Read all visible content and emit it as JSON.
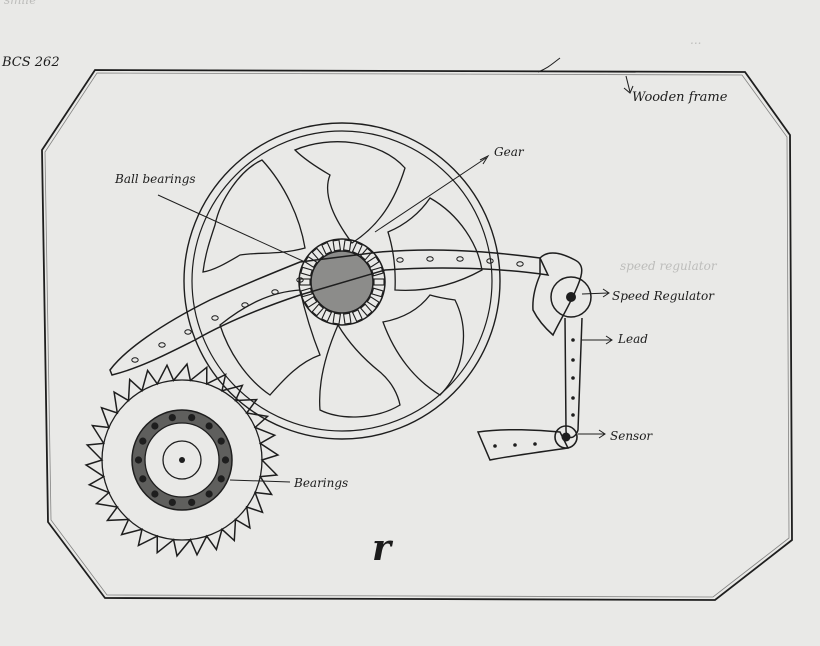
{
  "sheet": {
    "code": "BCS 262",
    "corner_mark": "r"
  },
  "labels": {
    "wooden_frame": "Wooden frame",
    "gear": "Gear",
    "ball_bearings": "Ball bearings",
    "speed_regulator": "Speed Regulator",
    "lead": "Lead",
    "sensor": "Sensor",
    "bearings": "Bearings"
  },
  "faint_text": {
    "top_left": "smile",
    "top_right": "...",
    "right_side": "speed regulator"
  },
  "colors": {
    "paper": "#e9e9e7",
    "ink": "#1e1e1e",
    "shade": "#6d6d6d"
  }
}
